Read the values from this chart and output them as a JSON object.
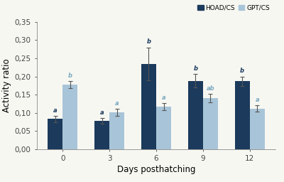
{
  "days": [
    0,
    3,
    6,
    9,
    12
  ],
  "hoad_values": [
    0.083,
    0.078,
    0.235,
    0.188,
    0.187
  ],
  "hoad_errors": [
    0.008,
    0.008,
    0.045,
    0.018,
    0.013
  ],
  "gpt_values": [
    0.178,
    0.102,
    0.117,
    0.14,
    0.112
  ],
  "gpt_errors": [
    0.01,
    0.01,
    0.01,
    0.012,
    0.008
  ],
  "hoad_color": "#1b3a5c",
  "gpt_color": "#a8c4d8",
  "hoad_label": "HOAD/CS",
  "gpt_label": "GPT/CS",
  "xlabel": "Days posthatching",
  "ylabel": "Activity ratio",
  "ylim": [
    0,
    0.35
  ],
  "yticks": [
    0.0,
    0.05,
    0.1,
    0.15,
    0.2,
    0.25,
    0.3,
    0.35
  ],
  "ytick_labels": [
    "0,00",
    "0,05",
    "0,10",
    "0,15",
    "0,20",
    "0,25",
    "0,30",
    "0,35"
  ],
  "hoad_letters": [
    "a",
    "a",
    "b",
    "b",
    "b"
  ],
  "gpt_letters": [
    "b",
    "a",
    "a",
    "ab",
    "a"
  ],
  "bar_width": 0.32,
  "background_color": "#f7f7f2",
  "letter_color_hoad": "#1b3a5c",
  "letter_color_gpt": "#7aaabf"
}
